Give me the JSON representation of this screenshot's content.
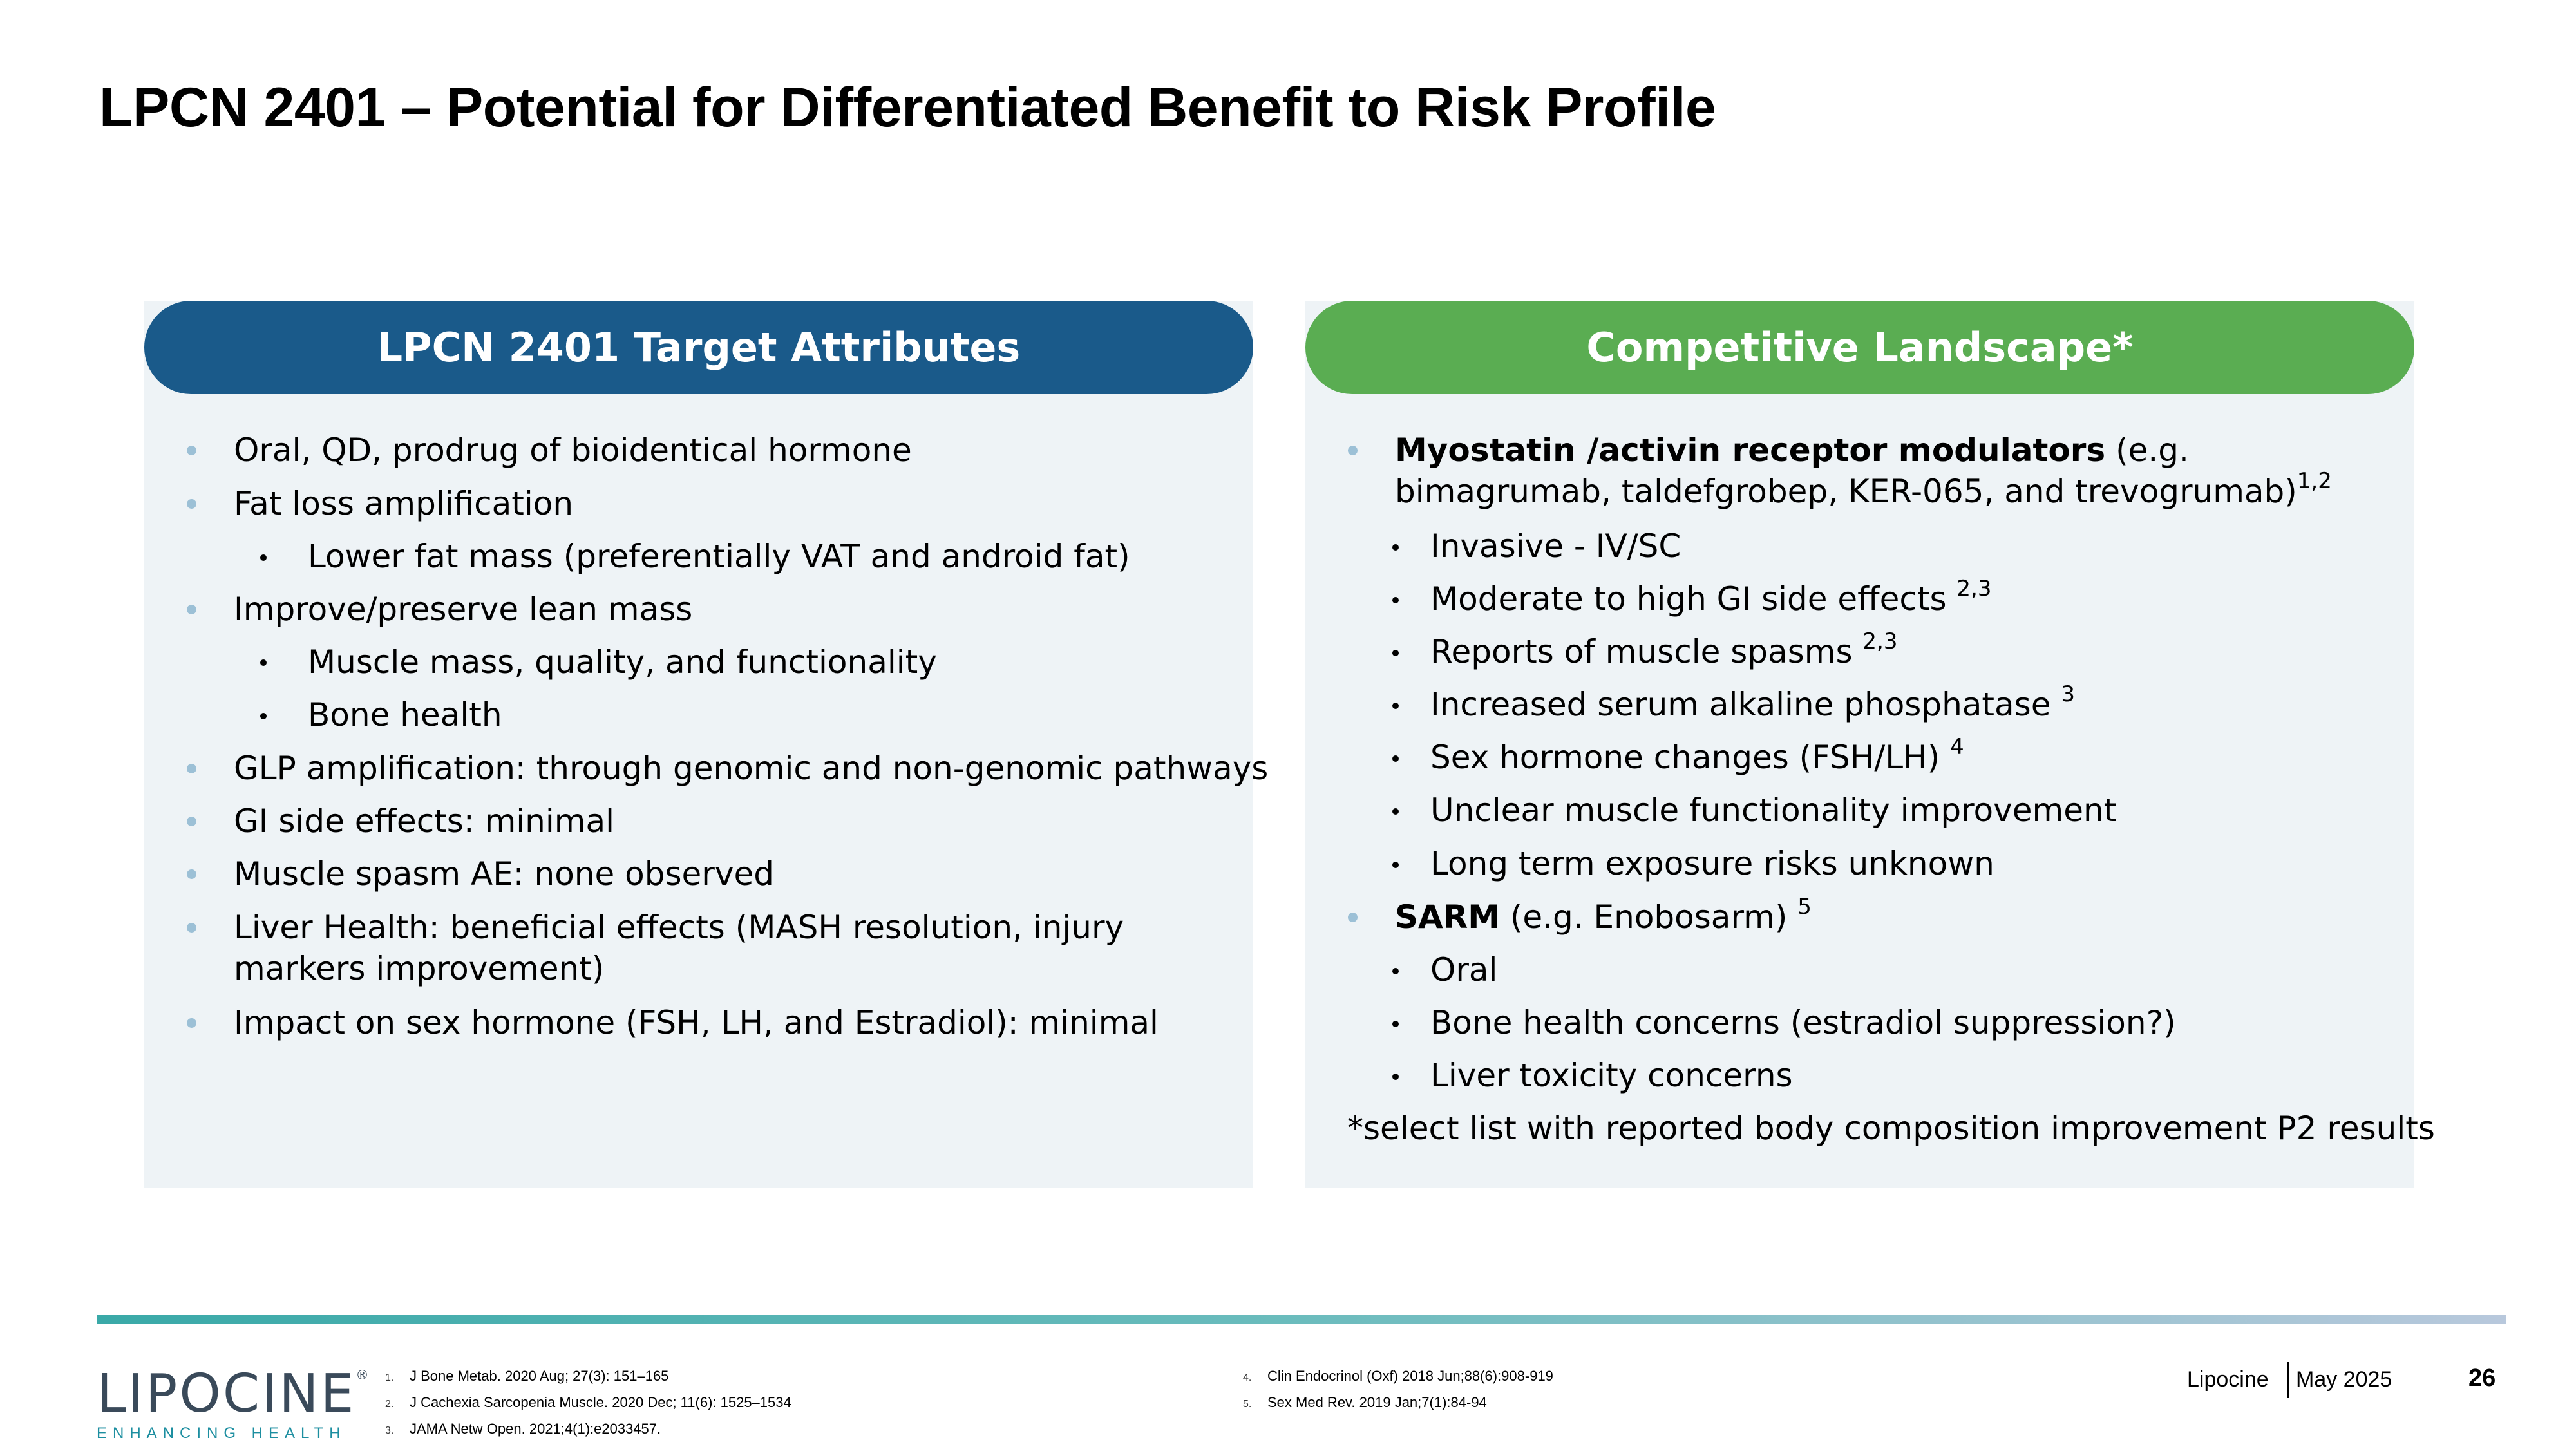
{
  "slide": {
    "title": "LPCN 2401 – Potential for Differentiated Benefit to Risk Profile"
  },
  "left_panel": {
    "header": "LPCN 2401 Target Attributes",
    "items": [
      {
        "text": "Oral, QD, prodrug of bioidentical hormone"
      },
      {
        "text": "Fat loss amplification"
      },
      {
        "text": "Lower fat mass (preferentially VAT and android fat)"
      },
      {
        "text": "Improve/preserve lean mass"
      },
      {
        "text": "Muscle mass, quality, and functionality"
      },
      {
        "text": "Bone health"
      },
      {
        "text": "GLP amplification: through genomic and non-genomic pathways"
      },
      {
        "text": "GI side effects: minimal"
      },
      {
        "text": "Muscle spasm AE: none observed"
      },
      {
        "text": "Liver Health:  beneficial effects (MASH resolution, injury markers improvement)"
      },
      {
        "text": "Impact on sex hormone (FSH, LH, and Estradiol): minimal"
      }
    ]
  },
  "right_panel": {
    "header": "Competitive Landscape*",
    "items": [
      {
        "bold": "Myostatin /activin receptor modulators",
        "text": " (e.g. bimagrumab, taldefgrobep, KER-065, and trevogrumab)",
        "sup": "1,2"
      },
      {
        "text": "Invasive - IV/SC"
      },
      {
        "text": "Moderate to high GI side effects ",
        "sup": "2,3"
      },
      {
        "text": "Reports of muscle spasms ",
        "sup": "2,3"
      },
      {
        "text": "Increased serum alkaline phosphatase ",
        "sup": "3"
      },
      {
        "text": "Sex hormone changes (FSH/LH) ",
        "sup": "4"
      },
      {
        "text": "Unclear muscle functionality improvement"
      },
      {
        "text": "Long term exposure risks unknown"
      },
      {
        "bold": "SARM",
        "text": " (e.g. Enobosarm) ",
        "sup": "5"
      },
      {
        "text": "Oral"
      },
      {
        "text": "Bone health concerns (estradiol suppression?)"
      },
      {
        "text": "Liver toxicity concerns"
      }
    ],
    "footnote": "*select list with reported body composition improvement P2 results"
  },
  "logo": {
    "name": "LIPOCINE",
    "reg": "®",
    "tagline": "ENHANCING HEALTH"
  },
  "references": [
    {
      "num": "1.",
      "text": "J Bone Metab. 2020 Aug; 27(3): 151–165"
    },
    {
      "num": "2.",
      "text": "J Cachexia Sarcopenia Muscle. 2020 Dec; 11(6): 1525–1534"
    },
    {
      "num": "3.",
      "text": "JAMA Netw Open. 2021;4(1):e2033457."
    },
    {
      "num": "4.",
      "text": "Clin Endocrinol (Oxf) 2018 Jun;88(6):908-919"
    },
    {
      "num": "5.",
      "text": "Sex Med Rev. 2019 Jan;7(1):84-94"
    }
  ],
  "footer": {
    "company": "Lipocine",
    "date": "May 2025",
    "page": "26"
  },
  "colors": {
    "left_header": "#1a5a8a",
    "right_header": "#5aad52",
    "panel_bg": "#eef3f6",
    "level1_bullet": "#9cc0d6",
    "divider_start": "#3aa9a8",
    "divider_end": "#b8c8dc",
    "logo_tagline": "#1c8ea0"
  }
}
